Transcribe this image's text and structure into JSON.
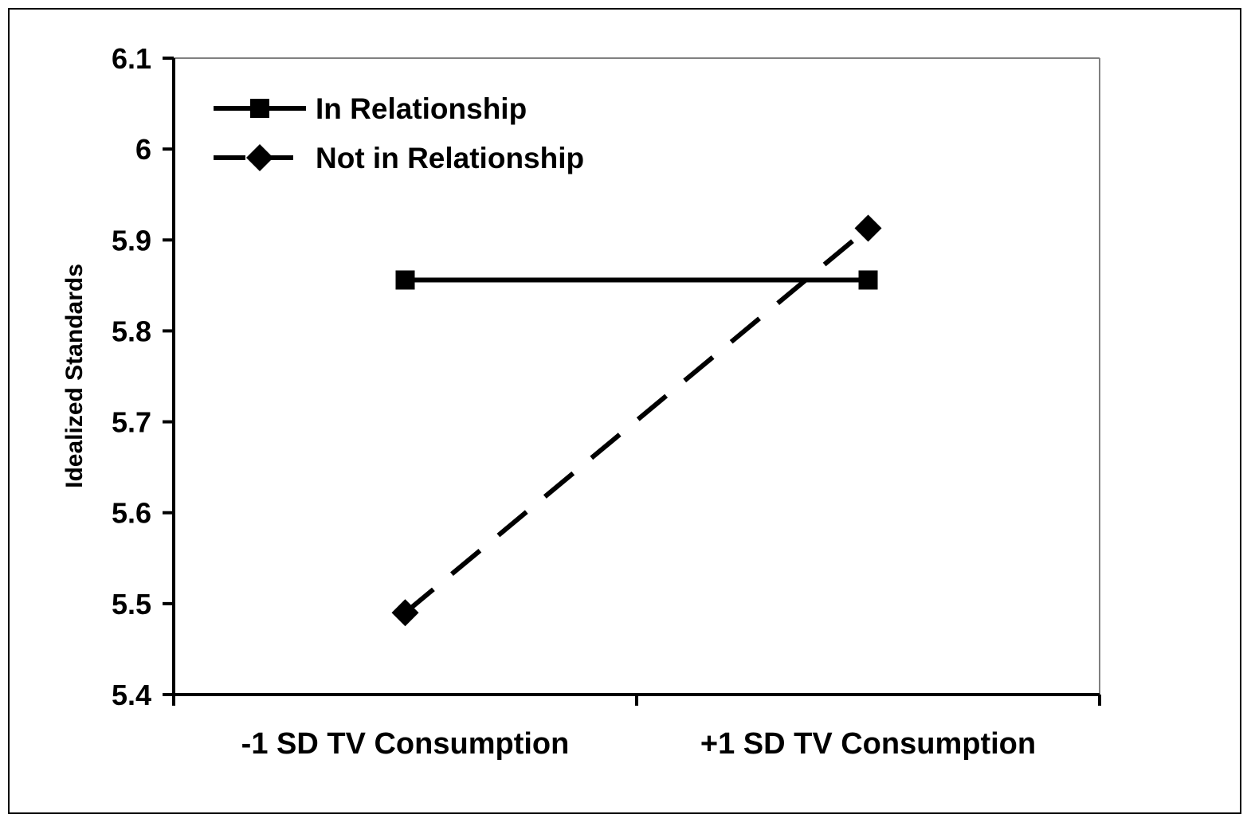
{
  "chart_data": {
    "type": "line",
    "title": "",
    "xlabel": "",
    "ylabel": "Idealized Standards",
    "categories": [
      "-1 SD TV Consumption",
      "+1 SD TV Consumption"
    ],
    "ylim": [
      5.4,
      6.1
    ],
    "yticks": [
      "5.4",
      "5.5",
      "5.6",
      "5.7",
      "5.8",
      "5.9",
      "6",
      "6.1"
    ],
    "grid": false,
    "legend_position": "top-left",
    "series": [
      {
        "name": "In Relationship",
        "values": [
          5.856,
          5.856
        ],
        "line_style": "solid",
        "marker": "square",
        "color": "#000000"
      },
      {
        "name": "Not in Relationship",
        "values": [
          5.49,
          5.913
        ],
        "line_style": "dashed",
        "marker": "diamond",
        "color": "#000000"
      }
    ]
  }
}
